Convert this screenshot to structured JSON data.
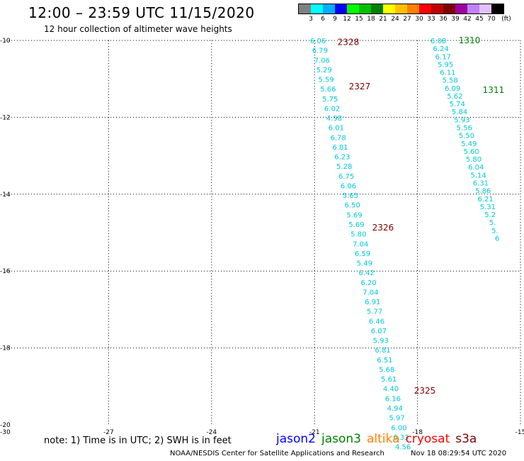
{
  "title": "12:00 – 23:59 UTC 11/15/2020",
  "subtitle": "12 hour collection of altimeter wave heights",
  "legend": {
    "colors": [
      "#808080",
      "#00ffff",
      "#00b0ff",
      "#0000ff",
      "#00ff00",
      "#00c000",
      "#008000",
      "#ffff00",
      "#ffc000",
      "#ff8000",
      "#ff0000",
      "#c00000",
      "#800000",
      "#a000a0",
      "#c080ff",
      "#e0c0ff",
      "#000000"
    ],
    "labels": [
      "3",
      "6",
      "9",
      "12",
      "15",
      "18",
      "21",
      "24",
      "27",
      "30",
      "33",
      "36",
      "39",
      "42",
      "45",
      "70"
    ],
    "unit": "(ft)"
  },
  "axes": {
    "x_ticks": [
      "-30",
      "-27",
      "-24",
      "-21",
      "-18",
      "-15"
    ],
    "y_ticks": [
      "-10",
      "-12",
      "-14",
      "-16",
      "-18",
      "-20"
    ]
  },
  "wave_color": "#00c8d8",
  "tracks": [
    {
      "values": [
        "6.06",
        "6.79",
        "7.06",
        "5.29",
        "5.59",
        "5.66",
        "5.75",
        "6.02",
        "4.98",
        "6.01",
        "6.78",
        "6.81",
        "6.23",
        "5.28",
        "6.75",
        "6.06",
        "5.65",
        "6.50",
        "5.69",
        "5.69",
        "5.80",
        "7.04",
        "6.59",
        "5.49",
        "6.42",
        "6.20",
        "7.04",
        "6.91",
        "5.77",
        "6.46",
        "6.07",
        "5.93",
        "6.81",
        "6.51",
        "5.68",
        "5.61",
        "4.40",
        "6.16",
        "4.94",
        "5.97",
        "6.00",
        "6.33",
        "4.56"
      ],
      "labels": [
        {
          "text": "2328",
          "color": "#800000"
        },
        {
          "text": "2327",
          "color": "#800000"
        },
        {
          "text": "2326",
          "color": "#800000"
        },
        {
          "text": "2325",
          "color": "#800000"
        }
      ]
    },
    {
      "values": [
        "6.08",
        "6.24",
        "6.17",
        "5.95",
        "6.11",
        "5.58",
        "6.09",
        "5.62",
        "5.74",
        "5.84",
        "5.93",
        "5.56",
        "5.50",
        "5.49",
        "5.60",
        "5.80",
        "6.04",
        "5.14",
        "6.31",
        "5.86",
        "6.21",
        "5.31",
        "5.2",
        "5.",
        "5.",
        "6"
      ],
      "labels": [
        {
          "text": "1310",
          "color": "#008000"
        },
        {
          "text": "1311",
          "color": "#008000"
        }
      ]
    }
  ],
  "note": "note:  1) Time is in UTC;  2) SWH is in feet",
  "satellites": [
    {
      "name": "jason2",
      "color": "#0000ff"
    },
    {
      "name": "jason3",
      "color": "#008000"
    },
    {
      "name": "altika",
      "color": "#ff8000"
    },
    {
      "name": "cryosat",
      "color": "#ff0000"
    },
    {
      "name": "s3a",
      "color": "#800000"
    }
  ],
  "footer": {
    "credit": "NOAA/NESDIS Center for Satellite Applications and Research",
    "timestamp": "Nov 18 08:29:54 UTC 2020"
  }
}
